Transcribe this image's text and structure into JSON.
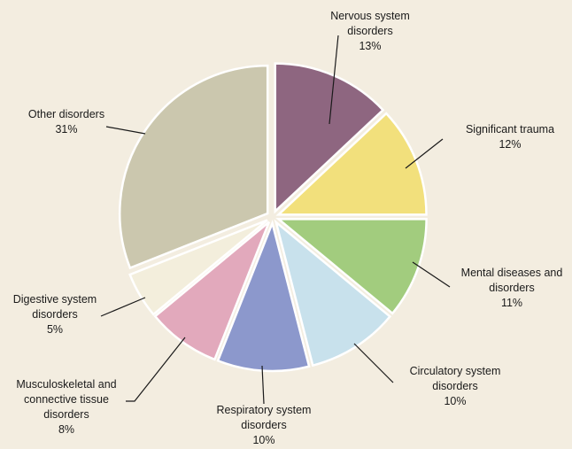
{
  "chart_data": {
    "type": "pie",
    "title": "",
    "unit": "%",
    "slices": [
      {
        "name": [
          "Nervous system",
          "disorders"
        ],
        "value": 13,
        "label": "13%",
        "color": "#8e6680"
      },
      {
        "name": [
          "Significant trauma"
        ],
        "value": 12,
        "label": "12%",
        "color": "#f2e07c"
      },
      {
        "name": [
          "Mental diseases and",
          "disorders"
        ],
        "value": 11,
        "label": "11%",
        "color": "#a2cc7e"
      },
      {
        "name": [
          "Circulatory system",
          "disorders"
        ],
        "value": 10,
        "label": "10%",
        "color": "#c8e1ec"
      },
      {
        "name": [
          "Respiratory system",
          "disorders"
        ],
        "value": 10,
        "label": "10%",
        "color": "#8c98cc"
      },
      {
        "name": [
          "Musculoskeletal and",
          "connective tissue",
          "disorders"
        ],
        "value": 8,
        "label": "8%",
        "color": "#e2a9bc"
      },
      {
        "name": [
          "Digestive system",
          "disorders"
        ],
        "value": 5,
        "label": "5%",
        "color": "#f3eedc"
      },
      {
        "name": [
          "Other disorders"
        ],
        "value": 31,
        "label": "31%",
        "color": "#cbc7ae"
      }
    ],
    "legend": "none",
    "start_angle_deg": 0,
    "direction": "clockwise",
    "exploded": true
  }
}
